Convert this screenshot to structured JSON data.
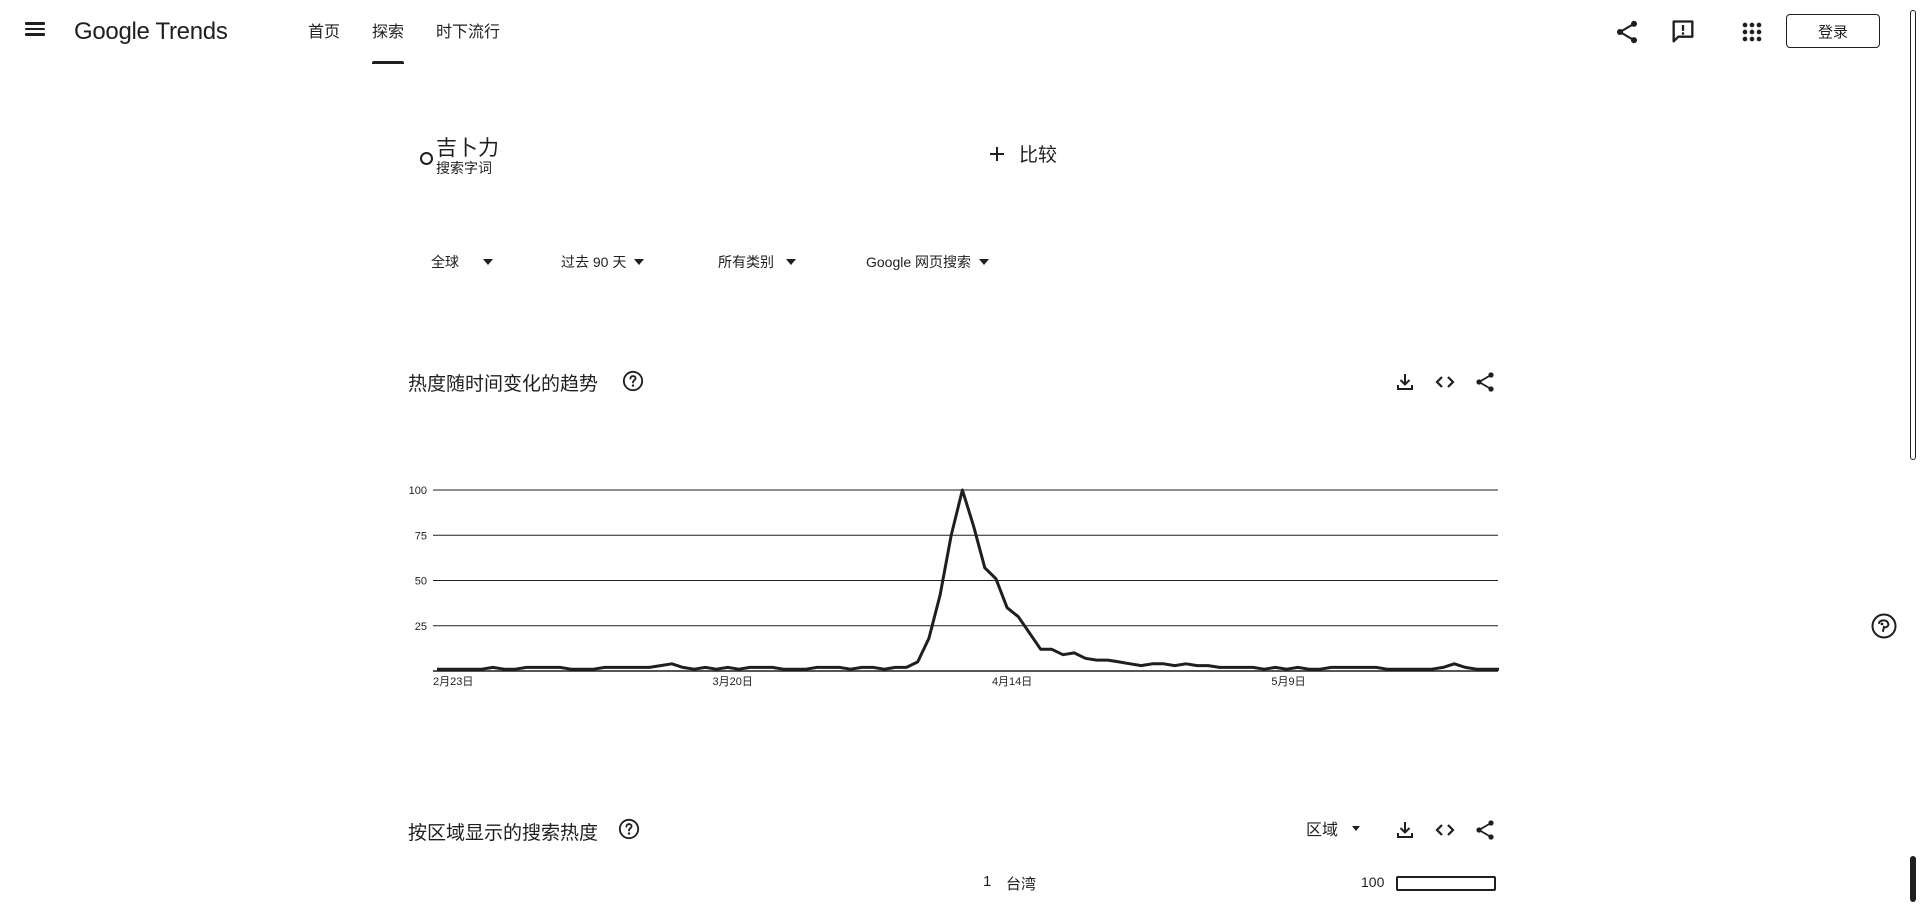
{
  "header": {
    "logo": "Google Trends",
    "tabs": [
      {
        "label": "首页",
        "active": false
      },
      {
        "label": "探索",
        "active": true
      },
      {
        "label": "时下流行",
        "active": false
      }
    ],
    "login_label": "登录",
    "icons": [
      "menu-icon",
      "share-icon",
      "feedback-icon",
      "apps-grid-icon"
    ]
  },
  "search": {
    "term": "吉卜力",
    "term_type": "搜索字词",
    "compare_label": "比较"
  },
  "filters": {
    "region": "全球",
    "time": "过去 90 天",
    "category": "所有类别",
    "property": "Google 网页搜索"
  },
  "interest_over_time": {
    "title": "热度随时间变化的趋势",
    "actions": [
      "download-icon",
      "embed-icon",
      "share-icon"
    ]
  },
  "chart_data": {
    "type": "line",
    "title": "",
    "xlabel": "",
    "ylabel": "",
    "ylim": [
      0,
      100
    ],
    "yticks": [
      25,
      50,
      75,
      100
    ],
    "ytick_labels": [
      "25",
      "50",
      "75",
      "100"
    ],
    "xtick_labels": [
      "2月23日",
      "3月20日",
      "4月14日",
      "5月9日"
    ],
    "xtick_indices": [
      0,
      25,
      50,
      75
    ],
    "grid": true,
    "series": [
      {
        "values": [
          1,
          1,
          1,
          1,
          1,
          2,
          1,
          1,
          2,
          2,
          2,
          2,
          1,
          1,
          1,
          2,
          2,
          2,
          2,
          2,
          3,
          4,
          2,
          1,
          2,
          1,
          2,
          1,
          2,
          2,
          2,
          1,
          1,
          1,
          2,
          2,
          2,
          1,
          2,
          2,
          1,
          2,
          2,
          5,
          18,
          42,
          75,
          100,
          80,
          57,
          51,
          35,
          30,
          21,
          12,
          12,
          9,
          10,
          7,
          6,
          6,
          5,
          4,
          3,
          4,
          4,
          3,
          4,
          3,
          3,
          2,
          2,
          2,
          2,
          1,
          2,
          1,
          2,
          1,
          1,
          2,
          2,
          2,
          2,
          2,
          1,
          1,
          1,
          1,
          1,
          2,
          4,
          2,
          1,
          1,
          1
        ]
      }
    ]
  },
  "interest_by_region": {
    "title": "按区域显示的搜索热度",
    "resolution_label": "区域",
    "rows": [
      {
        "rank": "1",
        "name": "台湾",
        "value": "100"
      }
    ]
  }
}
